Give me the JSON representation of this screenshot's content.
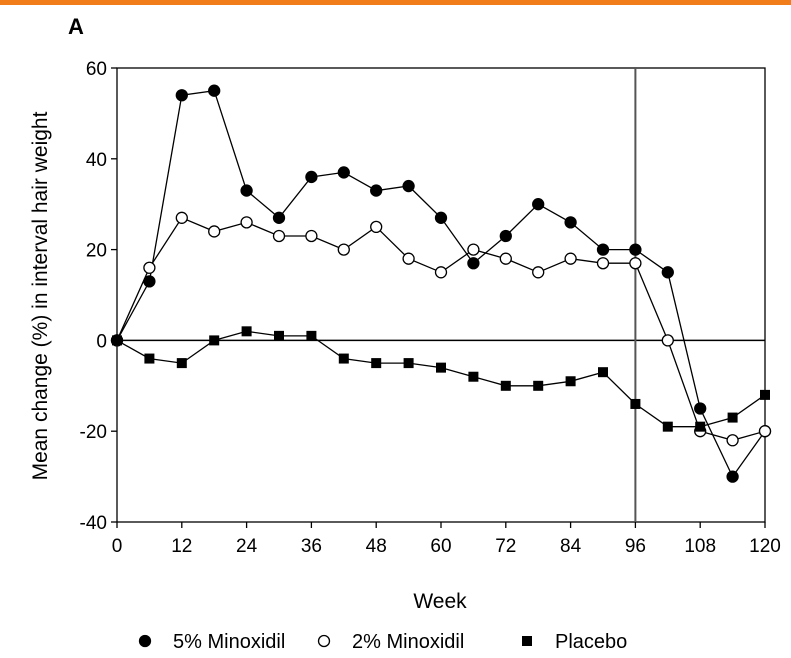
{
  "accent_color": "#f07d1a",
  "chart_data": {
    "type": "line",
    "panel_label": "A",
    "xlabel": "Week",
    "ylabel": "Mean change (%) in interval hair weight",
    "xlim": [
      0,
      120
    ],
    "ylim": [
      -40,
      60
    ],
    "x_ticks": [
      0,
      12,
      24,
      36,
      48,
      60,
      72,
      84,
      96,
      108,
      120
    ],
    "y_ticks": [
      -40,
      -20,
      0,
      20,
      40,
      60
    ],
    "reference_lines": {
      "y": 0,
      "x": 96
    },
    "grid": false,
    "legend_position": "bottom",
    "series": [
      {
        "name": "5% Minoxidil",
        "marker": "filled-circle",
        "x": [
          0,
          6,
          12,
          18,
          24,
          30,
          36,
          42,
          48,
          54,
          60,
          66,
          72,
          78,
          84,
          90,
          96,
          102,
          108,
          114,
          120
        ],
        "y": [
          0,
          13,
          54,
          55,
          33,
          27,
          36,
          37,
          33,
          34,
          27,
          17,
          23,
          30,
          26,
          20,
          20,
          15,
          -15,
          -30,
          -20
        ]
      },
      {
        "name": "2% Minoxidil",
        "marker": "open-circle",
        "x": [
          0,
          6,
          12,
          18,
          24,
          30,
          36,
          42,
          48,
          54,
          60,
          66,
          72,
          78,
          84,
          90,
          96,
          102,
          108,
          114,
          120
        ],
        "y": [
          0,
          16,
          27,
          24,
          26,
          23,
          23,
          20,
          25,
          18,
          15,
          20,
          18,
          15,
          18,
          17,
          17,
          0,
          -20,
          -22,
          -20
        ]
      },
      {
        "name": "Placebo",
        "marker": "filled-square",
        "x": [
          0,
          6,
          12,
          18,
          24,
          30,
          36,
          42,
          48,
          54,
          60,
          66,
          72,
          78,
          84,
          90,
          96,
          102,
          108,
          114,
          120
        ],
        "y": [
          0,
          -4,
          -5,
          0,
          2,
          1,
          1,
          -4,
          -5,
          -5,
          -6,
          -8,
          -10,
          -10,
          -9,
          -7,
          -14,
          -19,
          -19,
          -17,
          -12
        ]
      }
    ]
  }
}
